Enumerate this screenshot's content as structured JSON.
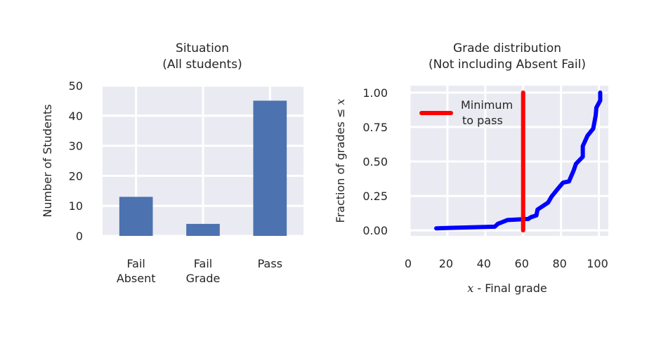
{
  "chart_data": [
    {
      "type": "bar",
      "title": [
        "Situation",
        "(All students)"
      ],
      "categories": [
        [
          "Fail",
          "Absent"
        ],
        [
          "Fail",
          "Grade"
        ],
        [
          "Pass"
        ]
      ],
      "values": [
        13,
        4,
        45
      ],
      "ylabel": "Number of Students",
      "xlabel": "",
      "ylim": [
        0,
        50
      ],
      "yticks": [
        "0",
        "10",
        "20",
        "30",
        "40",
        "50"
      ],
      "color": "#4c72b0",
      "grid": true
    },
    {
      "type": "line",
      "title": [
        "Grade distribution",
        "(Not including Absent Fail)"
      ],
      "xlabel_var": "x",
      "xlabel": " - Final grade",
      "ylabel": "Fraction of grades ≤ ",
      "ylabel_var": "x",
      "xlim": [
        0,
        105
      ],
      "ylim": [
        -0.04,
        1.05
      ],
      "xticks": [
        "0",
        "20",
        "40",
        "60",
        "80",
        "100"
      ],
      "xtick_values": [
        0,
        20,
        40,
        60,
        80,
        100
      ],
      "yticks": [
        "0.00",
        "0.25",
        "0.50",
        "0.75",
        "1.00"
      ],
      "ytick_values": [
        0,
        0.25,
        0.5,
        0.75,
        1.0
      ],
      "legend": {
        "label_lines": [
          "Minimum",
          "to pass"
        ],
        "placement": "top-left"
      },
      "series": [
        {
          "name": "cdf",
          "color": "#0000ff",
          "x": [
            14.1,
            45.0,
            46.8,
            48.6,
            51.7,
            62.7,
            64,
            67,
            67.6,
            69.5,
            73.2,
            75,
            78,
            81.1,
            84.2,
            86.6,
            87.9,
            91.5,
            91.5,
            94,
            97,
            98.3,
            98.7,
            100.7,
            100.7
          ],
          "y": [
            0.015,
            0.027,
            0.049,
            0.058,
            0.075,
            0.083,
            0.095,
            0.109,
            0.151,
            0.168,
            0.202,
            0.245,
            0.296,
            0.347,
            0.355,
            0.432,
            0.483,
            0.534,
            0.611,
            0.687,
            0.738,
            0.832,
            0.891,
            0.942,
            1.0
          ]
        },
        {
          "name": "Minimum to pass",
          "color": "#ff0000",
          "x": [
            60,
            60
          ],
          "y": [
            0,
            1.0
          ]
        }
      ],
      "grid": true
    }
  ]
}
